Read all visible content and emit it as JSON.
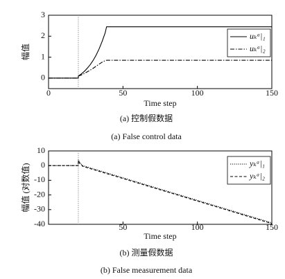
{
  "chart_data": [
    {
      "type": "line",
      "ylabel": "幅值",
      "xlabel": "Time step",
      "caption": "(a) 控制假数据",
      "subcaption": "(a) False control data",
      "x": [
        0,
        20,
        20,
        22,
        24,
        26,
        28,
        30,
        32,
        34,
        36,
        38,
        39,
        40,
        150
      ],
      "series": [
        {
          "name": "uₖᵃ|₁",
          "color": "#000000",
          "dash": "solid",
          "values": [
            0,
            0,
            0.1,
            0.2,
            0.32,
            0.47,
            0.64,
            0.85,
            1.1,
            1.4,
            1.75,
            2.15,
            2.45,
            2.45,
            2.45
          ]
        },
        {
          "name": "uₖᵃ|₂",
          "color": "#000000",
          "dash": "dashdot",
          "values": [
            0,
            0,
            0.1,
            0.15,
            0.22,
            0.3,
            0.38,
            0.47,
            0.57,
            0.67,
            0.76,
            0.83,
            0.85,
            0.85,
            0.85
          ]
        }
      ],
      "xlim": [
        0,
        150
      ],
      "xticks": [
        0,
        50,
        100,
        150
      ],
      "ylim": [
        -0.5,
        3
      ],
      "yticks": [
        0,
        1,
        2,
        3
      ],
      "vline": 20,
      "legend": "upper right"
    },
    {
      "type": "line",
      "ylabel": "幅值 (对数值)",
      "xlabel": "Time step",
      "caption": "(b) 测量假数据",
      "subcaption": "(b) False measurement data",
      "x": [
        0,
        20,
        20,
        21,
        23,
        150
      ],
      "series": [
        {
          "name": "yₖᵃ|₁",
          "color": "#000000",
          "dash": "dotted",
          "values": [
            0,
            0,
            4,
            2,
            0,
            -39
          ]
        },
        {
          "name": "yₖᵃ|₂",
          "color": "#000000",
          "dash": "dashed",
          "values": [
            0,
            0,
            3.5,
            1.5,
            -0.5,
            -39.5
          ]
        }
      ],
      "xlim": [
        0,
        150
      ],
      "xticks": [
        50,
        100,
        150
      ],
      "ylim": [
        -40,
        10
      ],
      "yticks": [
        -40,
        -30,
        -20,
        -10,
        0,
        10
      ],
      "vline": 20,
      "legend": "upper right"
    }
  ]
}
